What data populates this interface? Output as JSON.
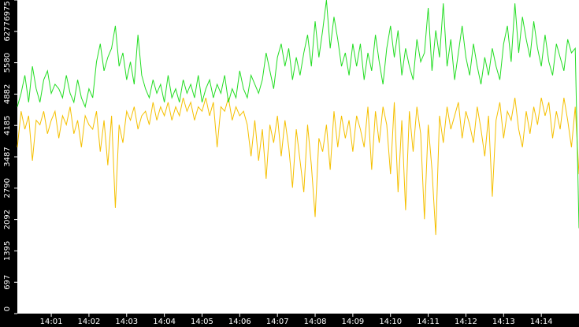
{
  "chart_data": {
    "type": "line",
    "xlim": [
      0,
      149
    ],
    "xticks": [
      {
        "value": 9,
        "label": "14:01"
      },
      {
        "value": 19,
        "label": "14:02"
      },
      {
        "value": 29,
        "label": "14:03"
      },
      {
        "value": 39,
        "label": "14:04"
      },
      {
        "value": 49,
        "label": "14:05"
      },
      {
        "value": 59,
        "label": "14:06"
      },
      {
        "value": 69,
        "label": "14:07"
      },
      {
        "value": 79,
        "label": "14:08"
      },
      {
        "value": 89,
        "label": "14:09"
      },
      {
        "value": 99,
        "label": "14:10"
      },
      {
        "value": 109,
        "label": "14:11"
      },
      {
        "value": 119,
        "label": "14:12"
      },
      {
        "value": 129,
        "label": "14:13"
      },
      {
        "value": 139,
        "label": "14:14"
      }
    ],
    "ylim": [
      0,
      6975
    ],
    "yticks": [
      0,
      697,
      1395,
      2092,
      2790,
      3487,
      4185,
      4882,
      5580,
      6277,
      6975
    ],
    "grid": false,
    "series": [
      {
        "color": "#f5c000",
        "values": [
          3700,
          4500,
          4100,
          4400,
          3400,
          4300,
          4200,
          4500,
          4000,
          4300,
          4500,
          3900,
          4400,
          4200,
          4600,
          4000,
          4300,
          3700,
          4400,
          4200,
          4100,
          4500,
          3600,
          4300,
          3300,
          4400,
          2350,
          4200,
          3800,
          4500,
          4300,
          4600,
          4100,
          4400,
          4500,
          4200,
          4700,
          4300,
          4600,
          4400,
          4700,
          4300,
          4600,
          4400,
          4800,
          4500,
          4700,
          4300,
          4600,
          4500,
          4800,
          4400,
          4700,
          3700,
          4600,
          4500,
          4800,
          4300,
          4600,
          4400,
          4500,
          4200,
          3500,
          4300,
          3400,
          4100,
          3000,
          4200,
          3800,
          4400,
          3500,
          4300,
          3700,
          2800,
          4100,
          3400,
          2700,
          4200,
          3300,
          2150,
          3900,
          3600,
          4200,
          3200,
          4500,
          3700,
          4400,
          3900,
          4300,
          3600,
          4400,
          4100,
          3700,
          4600,
          3200,
          4500,
          3800,
          4600,
          4200,
          3100,
          4700,
          2700,
          4300,
          2300,
          4500,
          3600,
          4600,
          4000,
          2100,
          4200,
          3200,
          1750,
          4400,
          3800,
          4600,
          4100,
          4400,
          4700,
          3900,
          4500,
          4200,
          3800,
          4600,
          4100,
          3500,
          4400,
          2600,
          4300,
          4700,
          3900,
          4500,
          4300,
          4800,
          4100,
          3700,
          4500,
          4000,
          4600,
          4200,
          4800,
          4400,
          4700,
          3900,
          4500,
          4100,
          4800,
          4300,
          3700,
          4600,
          3100
        ]
      },
      {
        "color": "#22dd22",
        "values": [
          4600,
          4900,
          5300,
          4700,
          5500,
          5000,
          4700,
          5200,
          5400,
          4900,
          5100,
          5000,
          4800,
          5300,
          4900,
          4700,
          5200,
          4800,
          4600,
          5000,
          4800,
          5600,
          6000,
          5400,
          5700,
          5900,
          6400,
          5500,
          5800,
          5200,
          5600,
          5100,
          6200,
          5300,
          5000,
          4800,
          5200,
          4900,
          5100,
          4700,
          5300,
          4800,
          5000,
          4700,
          5200,
          4900,
          5100,
          4800,
          5300,
          4700,
          5000,
          5200,
          4800,
          5100,
          4900,
          5300,
          4700,
          5000,
          4800,
          5400,
          5000,
          4800,
          5300,
          5100,
          4900,
          5200,
          5800,
          5400,
          5000,
          5700,
          6000,
          5500,
          5900,
          5200,
          5700,
          5300,
          5800,
          6200,
          5500,
          6500,
          5700,
          6300,
          6975,
          5900,
          6600,
          6100,
          5500,
          5800,
          5300,
          6000,
          5500,
          6000,
          5200,
          5800,
          5400,
          6200,
          5600,
          5100,
          5900,
          6400,
          5700,
          6300,
          5300,
          5900,
          5500,
          5200,
          6100,
          5600,
          5800,
          6800,
          5400,
          6300,
          5700,
          6900,
          5500,
          6100,
          5200,
          5800,
          6400,
          5700,
          5300,
          6000,
          5500,
          5100,
          5700,
          5300,
          5900,
          5500,
          5200,
          6000,
          6400,
          5600,
          6900,
          5800,
          6600,
          6100,
          5700,
          6500,
          5900,
          5500,
          6200,
          5600,
          5300,
          6000,
          5700,
          5400,
          6100,
          5800,
          5900,
          1900
        ]
      }
    ]
  }
}
